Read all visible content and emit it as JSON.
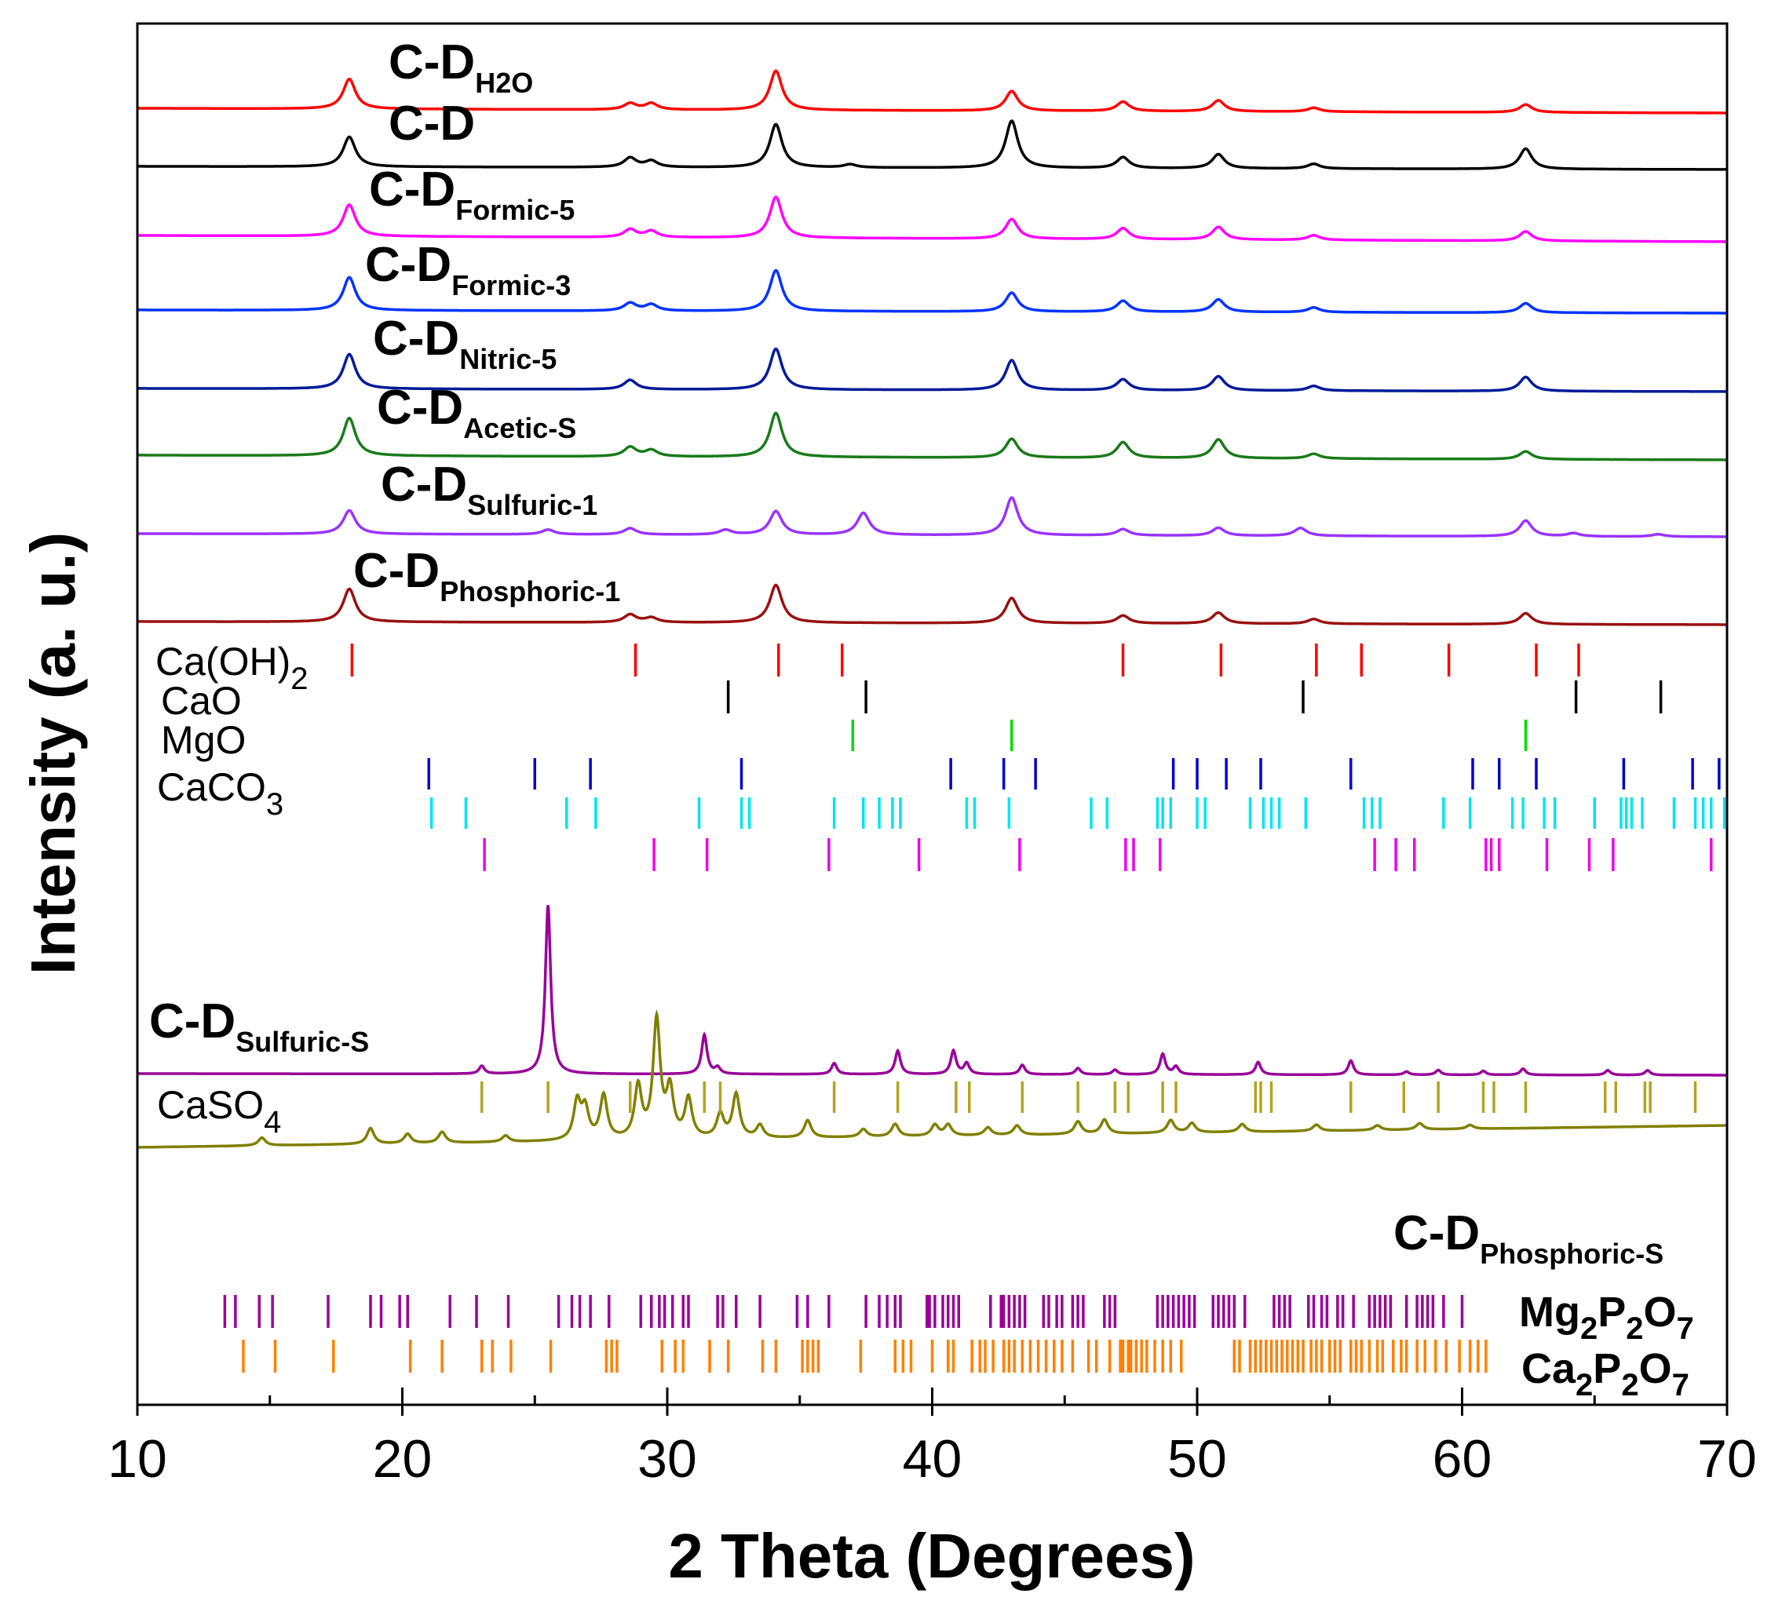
{
  "chart_data": {
    "type": "line",
    "xlabel": "2 Theta (Degrees)",
    "ylabel": "Intensity (a. u.)",
    "xlim": [
      10,
      70
    ],
    "xticks": [
      "10",
      "20",
      "30",
      "40",
      "50",
      "60",
      "70"
    ],
    "series": [
      {
        "name": "C-D_H2O",
        "label_main": "C-D",
        "label_sub": "H2O",
        "color": "#ff0000",
        "peaks": [
          [
            18.0,
            38
          ],
          [
            28.6,
            8
          ],
          [
            29.4,
            8
          ],
          [
            34.1,
            50
          ],
          [
            43.0,
            25
          ],
          [
            47.2,
            12
          ],
          [
            50.8,
            14
          ],
          [
            54.4,
            5
          ],
          [
            62.4,
            10
          ]
        ]
      },
      {
        "name": "C-D",
        "label_main": "C-D",
        "label_sub": "",
        "color": "#000000",
        "peaks": [
          [
            18.0,
            38
          ],
          [
            28.6,
            12
          ],
          [
            29.4,
            8
          ],
          [
            34.1,
            55
          ],
          [
            36.9,
            4
          ],
          [
            43.0,
            60
          ],
          [
            47.2,
            14
          ],
          [
            50.8,
            18
          ],
          [
            54.4,
            6
          ],
          [
            62.4,
            26
          ]
        ]
      },
      {
        "name": "C-D_Formic-5",
        "label_main": "C-D",
        "label_sub": "Formic-5",
        "color": "#ff00ff",
        "peaks": [
          [
            18.0,
            40
          ],
          [
            28.6,
            10
          ],
          [
            29.4,
            8
          ],
          [
            34.1,
            52
          ],
          [
            43.0,
            25
          ],
          [
            47.2,
            14
          ],
          [
            50.8,
            16
          ],
          [
            54.4,
            6
          ],
          [
            62.4,
            12
          ]
        ]
      },
      {
        "name": "C-D_Formic-3",
        "label_main": "C-D",
        "label_sub": "Formic-3",
        "color": "#0033ff",
        "peaks": [
          [
            18.0,
            42
          ],
          [
            28.6,
            10
          ],
          [
            29.4,
            8
          ],
          [
            34.1,
            52
          ],
          [
            43.0,
            24
          ],
          [
            47.2,
            14
          ],
          [
            50.8,
            16
          ],
          [
            54.4,
            6
          ],
          [
            62.4,
            12
          ]
        ]
      },
      {
        "name": "C-D_Nitric-5",
        "label_main": "C-D",
        "label_sub": "Nitric-5",
        "color": "#001a99",
        "peaks": [
          [
            18.0,
            44
          ],
          [
            28.6,
            12
          ],
          [
            34.1,
            52
          ],
          [
            43.0,
            38
          ],
          [
            47.2,
            14
          ],
          [
            50.8,
            18
          ],
          [
            54.4,
            6
          ],
          [
            62.4,
            18
          ]
        ]
      },
      {
        "name": "C-D_Acetic-S",
        "label_main": "C-D",
        "label_sub": "Acetic-S",
        "color": "#1a7a1a",
        "peaks": [
          [
            18.0,
            48
          ],
          [
            28.6,
            12
          ],
          [
            29.4,
            8
          ],
          [
            34.1,
            56
          ],
          [
            43.0,
            24
          ],
          [
            47.2,
            20
          ],
          [
            50.8,
            24
          ],
          [
            54.4,
            6
          ],
          [
            62.4,
            10
          ]
        ]
      },
      {
        "name": "C-D_Sulfuric-1",
        "label_main": "C-D",
        "label_sub": "Sulfuric-1",
        "color": "#9933ff",
        "peaks": [
          [
            18.0,
            30
          ],
          [
            25.5,
            6
          ],
          [
            28.6,
            8
          ],
          [
            32.2,
            6
          ],
          [
            34.1,
            30
          ],
          [
            37.4,
            28
          ],
          [
            43.0,
            48
          ],
          [
            47.2,
            8
          ],
          [
            50.8,
            10
          ],
          [
            53.9,
            10
          ],
          [
            62.4,
            20
          ],
          [
            64.2,
            4
          ],
          [
            67.4,
            3
          ]
        ]
      },
      {
        "name": "C-D_Phosphoric-1",
        "label_main": "C-D",
        "label_sub": "Phosphoric-1",
        "color": "#991111",
        "peaks": [
          [
            18.0,
            42
          ],
          [
            28.6,
            10
          ],
          [
            29.4,
            6
          ],
          [
            34.1,
            48
          ],
          [
            43.0,
            32
          ],
          [
            47.2,
            10
          ],
          [
            50.8,
            14
          ],
          [
            54.4,
            6
          ],
          [
            62.4,
            14
          ]
        ]
      },
      {
        "name": "C-D_Sulfuric-S",
        "label_main": "C-D",
        "label_sub": "Sulfuric-S",
        "color": "#990099",
        "peaks": [
          [
            23.0,
            10
          ],
          [
            25.5,
            215
          ],
          [
            31.4,
            50
          ],
          [
            31.9,
            8
          ],
          [
            36.3,
            14
          ],
          [
            38.7,
            30
          ],
          [
            40.8,
            30
          ],
          [
            41.3,
            14
          ],
          [
            43.4,
            12
          ],
          [
            45.5,
            8
          ],
          [
            46.9,
            6
          ],
          [
            48.7,
            26
          ],
          [
            49.2,
            10
          ],
          [
            52.3,
            16
          ],
          [
            55.8,
            18
          ],
          [
            57.9,
            4
          ],
          [
            59.1,
            6
          ],
          [
            60.8,
            5
          ],
          [
            62.3,
            8
          ],
          [
            65.5,
            6
          ],
          [
            67.0,
            6
          ]
        ]
      },
      {
        "name": "C-D_Phosphoric-S",
        "label_main": "C-D",
        "label_sub": "Phosphoric-S",
        "color": "#808000",
        "peaks": [
          [
            14.7,
            10
          ],
          [
            18.8,
            20
          ],
          [
            20.2,
            12
          ],
          [
            21.5,
            14
          ],
          [
            23.9,
            8
          ],
          [
            26.6,
            48
          ],
          [
            26.9,
            38
          ],
          [
            27.6,
            56
          ],
          [
            28.9,
            66
          ],
          [
            29.6,
            150
          ],
          [
            30.1,
            60
          ],
          [
            30.8,
            50
          ],
          [
            32.0,
            30
          ],
          [
            32.6,
            56
          ],
          [
            33.5,
            16
          ],
          [
            35.3,
            22
          ],
          [
            37.4,
            10
          ],
          [
            38.6,
            16
          ],
          [
            40.1,
            14
          ],
          [
            40.6,
            14
          ],
          [
            42.1,
            10
          ],
          [
            43.2,
            12
          ],
          [
            45.5,
            16
          ],
          [
            46.5,
            18
          ],
          [
            49.0,
            16
          ],
          [
            49.8,
            12
          ],
          [
            51.7,
            10
          ],
          [
            54.5,
            8
          ],
          [
            56.8,
            6
          ],
          [
            58.4,
            8
          ],
          [
            60.3,
            5
          ]
        ]
      }
    ],
    "references": [
      {
        "name": "Ca(OH)2",
        "label_main": "Ca(OH)",
        "label_sub": "2",
        "color": "#ff0000",
        "positions": [
          18.1,
          28.8,
          34.2,
          36.6,
          47.2,
          50.9,
          54.5,
          56.2,
          59.5,
          62.8,
          64.4
        ]
      },
      {
        "name": "CaO",
        "label_main": "CaO",
        "label_sub": "",
        "color": "#000000",
        "positions": [
          32.3,
          37.5,
          54.0,
          64.3,
          67.5
        ]
      },
      {
        "name": "MgO",
        "label_main": "MgO",
        "label_sub": "",
        "color": "#00dd00",
        "positions": [
          37.0,
          43.0,
          62.4
        ]
      },
      {
        "name": "CaCO3",
        "label_main": "CaCO",
        "label_sub": "3",
        "color": "#0000cc",
        "positions": [
          21.0,
          25.0,
          27.1,
          32.8,
          40.7,
          42.7,
          43.9,
          49.1,
          50.0,
          51.1,
          52.4,
          55.8,
          60.4,
          61.4,
          62.8,
          66.1,
          68.7,
          69.7
        ]
      },
      {
        "name": "CaCO3-2",
        "label_main": "",
        "label_sub": "",
        "color": "#00e5ee",
        "positions": [
          21.1,
          22.4,
          26.2,
          27.3,
          31.2,
          32.8,
          33.1,
          36.3,
          37.4,
          38.0,
          38.5,
          38.8,
          41.3,
          41.6,
          42.9,
          46.0,
          46.6,
          48.5,
          48.7,
          49.0,
          50.0,
          50.3,
          52.0,
          52.5,
          52.8,
          53.1,
          54.1,
          56.3,
          56.6,
          56.9,
          59.3,
          60.3,
          61.9,
          62.3,
          63.1,
          63.5,
          65.0,
          66.0,
          66.2,
          66.4,
          66.8,
          68.0,
          68.8,
          69.1,
          69.4,
          69.9
        ]
      },
      {
        "name": "CaCO3-3",
        "label_main": "",
        "label_sub": "",
        "color": "#ee00ee",
        "positions": [
          23.1,
          29.5,
          31.5,
          36.1,
          39.5,
          43.3,
          47.3,
          47.6,
          48.6,
          56.7,
          57.5,
          58.2,
          60.9,
          61.1,
          61.4,
          63.2,
          64.8,
          65.7,
          69.4
        ]
      },
      {
        "name": "CaSO4",
        "label_main": "CaSO",
        "label_sub": "4",
        "color": "#b3a31f",
        "positions": [
          23.0,
          25.5,
          28.6,
          31.4,
          32.0,
          36.3,
          38.7,
          40.9,
          41.4,
          43.4,
          45.5,
          46.9,
          47.4,
          48.7,
          49.2,
          52.2,
          52.4,
          52.8,
          55.8,
          57.8,
          59.1,
          60.8,
          61.2,
          62.4,
          65.4,
          65.8,
          66.9,
          67.1,
          68.8
        ]
      },
      {
        "name": "Mg2P2O7",
        "label_main": "Mg",
        "label_sub": "",
        "formula": [
          [
            "Mg",
            "n"
          ],
          [
            "2",
            "s"
          ],
          [
            "P",
            "n"
          ],
          [
            "2",
            "s"
          ],
          [
            "O",
            "n"
          ],
          [
            "7",
            "s"
          ]
        ],
        "color": "#990099",
        "positions": [
          13.3,
          13.7,
          14.6,
          15.1,
          17.2,
          18.8,
          19.2,
          19.9,
          20.2,
          21.8,
          22.8,
          24.0,
          25.9,
          26.4,
          26.7,
          27.1,
          27.8,
          29.0,
          29.4,
          29.7,
          29.9,
          30.2,
          30.6,
          30.8,
          31.9,
          32.1,
          32.6,
          33.5,
          34.9,
          35.3,
          36.1,
          37.5,
          38.0,
          38.3,
          38.6,
          38.8,
          39.8,
          39.9,
          40.1,
          40.4,
          40.6,
          40.8,
          41.0,
          42.2,
          42.6,
          42.7,
          42.9,
          43.1,
          43.3,
          43.5,
          44.2,
          44.4,
          44.7,
          44.9,
          45.3,
          45.5,
          45.7,
          46.5,
          46.7,
          46.9,
          48.5,
          48.7,
          48.9,
          49.1,
          49.3,
          49.5,
          49.7,
          49.9,
          50.6,
          50.8,
          51.0,
          51.2,
          51.4,
          51.8,
          52.9,
          53.1,
          53.3,
          53.5,
          54.2,
          54.4,
          54.7,
          54.9,
          55.3,
          55.5,
          55.9,
          56.5,
          56.7,
          56.9,
          57.1,
          57.3,
          57.9,
          58.3,
          58.5,
          58.7,
          58.9,
          59.3,
          60.0
        ]
      },
      {
        "name": "Ca2P2O7",
        "label_main": "Ca",
        "label_sub": "",
        "formula": [
          [
            "Ca",
            "n"
          ],
          [
            "2",
            "s"
          ],
          [
            "P",
            "n"
          ],
          [
            "2",
            "s"
          ],
          [
            "O",
            "n"
          ],
          [
            "7",
            "s"
          ]
        ],
        "color": "#ff8000",
        "positions": [
          14.0,
          15.2,
          17.4,
          20.3,
          21.5,
          23.0,
          23.4,
          24.1,
          25.6,
          27.7,
          27.9,
          28.1,
          29.8,
          30.3,
          30.6,
          31.6,
          32.3,
          33.6,
          34.1,
          35.1,
          35.3,
          35.5,
          35.7,
          37.3,
          38.6,
          38.9,
          39.2,
          40.0,
          40.6,
          40.8,
          41.5,
          41.8,
          42.0,
          42.3,
          42.7,
          42.9,
          43.1,
          43.4,
          43.7,
          44.0,
          44.3,
          44.6,
          44.9,
          45.3,
          45.9,
          46.2,
          46.7,
          47.1,
          47.2,
          47.4,
          47.5,
          47.7,
          47.9,
          48.1,
          48.4,
          48.7,
          49.0,
          49.4,
          51.4,
          51.6,
          52.0,
          52.2,
          52.4,
          52.6,
          52.8,
          53.0,
          53.2,
          53.4,
          53.6,
          53.8,
          54.0,
          54.3,
          54.5,
          54.7,
          55.0,
          55.2,
          55.4,
          55.8,
          56.0,
          56.2,
          56.5,
          56.8,
          57.0,
          57.4,
          57.7,
          57.9,
          58.3,
          58.6,
          59.0,
          59.4,
          59.9,
          60.3,
          60.6,
          60.9
        ]
      }
    ]
  }
}
